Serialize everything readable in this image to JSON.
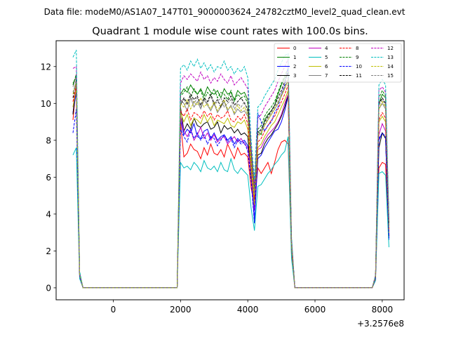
{
  "suptitle": "Data file: modeM0/AS1A07_147T01_9000003624_24782cztM0_level2_quad_clean.evt",
  "chart_data": {
    "type": "line",
    "title": "Quadrant 1 module wise count rates with 100.0s bins.",
    "xlabel": "",
    "ylabel": "",
    "x_offset_label": "+3.2576e8",
    "xlim": [
      -1700,
      8650
    ],
    "ylim": [
      -0.65,
      13.4
    ],
    "xticks": [
      0,
      2000,
      4000,
      6000,
      8000
    ],
    "xtick_labels": [
      "0",
      "2000",
      "4000",
      "6000",
      "8000"
    ],
    "yticks": [
      0,
      2,
      4,
      6,
      8,
      10,
      12
    ],
    "ytick_labels": [
      "0",
      "2",
      "4",
      "6",
      "8",
      "10",
      "12"
    ],
    "grid": false,
    "legend_position": "top-right",
    "segments": [
      {
        "x": [
          -1200,
          -1100,
          -1000,
          -900
        ]
      },
      {
        "x": [
          1900,
          2000,
          2100,
          2200,
          2300,
          2400,
          2500,
          2600,
          2700,
          2800,
          2900,
          3000,
          3100,
          3200,
          3300,
          3400,
          3500,
          3600,
          3700,
          3800,
          3900,
          4000,
          4100,
          4200,
          4300,
          4400,
          4500,
          4600,
          4700,
          4800,
          4900,
          5000,
          5100,
          5200,
          5300,
          5400
        ]
      },
      {
        "x": [
          7700,
          7800,
          7900,
          8000,
          8100,
          8200
        ]
      }
    ],
    "series": [
      {
        "name": "0",
        "color": "#ff0000",
        "dashed": false,
        "values": [
          [
            9.1,
            11.0,
            0.6,
            0.0
          ],
          [
            0.0,
            9.0,
            7.1,
            7.3,
            7.8,
            7.5,
            7.4,
            7.0,
            7.6,
            7.2,
            7.8,
            7.3,
            7.2,
            7.5,
            7.1,
            7.8,
            7.4,
            7.0,
            7.6,
            7.2,
            7.3,
            7.1,
            5.4,
            4.5,
            6.5,
            6.2,
            6.5,
            6.8,
            6.2,
            6.8,
            7.5,
            7.9,
            8.0,
            7.8,
            1.8,
            0.0
          ],
          [
            0.0,
            0.4,
            6.5,
            6.8,
            6.7,
            2.8
          ]
        ]
      },
      {
        "name": "1",
        "color": "#008000",
        "dashed": false,
        "values": [
          [
            11.1,
            11.4,
            0.8,
            0.0
          ],
          [
            0.0,
            10.5,
            10.8,
            10.6,
            11.0,
            10.7,
            10.5,
            10.8,
            10.4,
            10.9,
            10.6,
            10.5,
            10.7,
            10.3,
            10.8,
            10.5,
            10.6,
            10.2,
            10.7,
            10.5,
            10.6,
            10.2,
            7.5,
            5.5,
            8.5,
            8.3,
            9.1,
            9.4,
            9.6,
            9.9,
            10.5,
            11.0,
            11.4,
            11.6,
            2.5,
            0.0
          ],
          [
            0.0,
            0.6,
            10.0,
            10.5,
            10.3,
            3.5
          ]
        ]
      },
      {
        "name": "2",
        "color": "#0000ff",
        "dashed": false,
        "values": [
          [
            9.5,
            10.6,
            0.7,
            0.0
          ],
          [
            0.0,
            9.1,
            8.3,
            8.6,
            8.4,
            8.9,
            8.2,
            8.1,
            8.5,
            8.6,
            8.1,
            8.4,
            8.0,
            8.2,
            8.3,
            8.0,
            8.2,
            7.8,
            8.1,
            7.9,
            8.0,
            7.7,
            6.2,
            3.6,
            7.0,
            7.2,
            7.6,
            7.9,
            8.2,
            8.5,
            8.6,
            9.0,
            9.6,
            10.4,
            2.3,
            0.0
          ],
          [
            0.0,
            0.6,
            8.0,
            8.4,
            8.1,
            2.6
          ]
        ]
      },
      {
        "name": "3",
        "color": "#000000",
        "dashed": false,
        "values": [
          [
            9.4,
            11.2,
            0.7,
            0.0
          ],
          [
            0.0,
            9.8,
            8.5,
            8.9,
            8.6,
            9.2,
            8.8,
            8.7,
            8.9,
            9.0,
            8.6,
            8.7,
            9.0,
            8.4,
            8.8,
            8.6,
            8.7,
            8.4,
            8.6,
            8.3,
            8.4,
            8.2,
            6.0,
            4.7,
            7.2,
            7.3,
            7.8,
            8.1,
            8.3,
            8.6,
            8.9,
            9.3,
            9.8,
            10.5,
            2.4,
            0.0
          ],
          [
            0.0,
            0.6,
            7.6,
            8.4,
            8.1,
            2.8
          ]
        ]
      },
      {
        "name": "4",
        "color": "#bf00bf",
        "dashed": false,
        "values": [
          [
            9.8,
            11.0,
            0.7,
            0.0
          ],
          [
            0.0,
            9.3,
            8.5,
            8.2,
            8.6,
            8.0,
            8.3,
            8.7,
            8.1,
            8.4,
            8.0,
            8.3,
            7.9,
            8.1,
            8.2,
            7.8,
            8.0,
            8.2,
            7.9,
            8.1,
            7.8,
            7.6,
            6.3,
            4.2,
            7.5,
            7.6,
            8.0,
            8.3,
            8.5,
            8.7,
            9.0,
            9.4,
            10.0,
            10.5,
            2.3,
            0.0
          ],
          [
            0.0,
            0.6,
            8.3,
            8.9,
            8.5,
            2.9
          ]
        ]
      },
      {
        "name": "5",
        "color": "#00bfbf",
        "dashed": false,
        "values": [
          [
            7.2,
            7.6,
            0.5,
            0.0
          ],
          [
            0.0,
            6.8,
            6.5,
            6.6,
            6.4,
            6.8,
            6.6,
            6.3,
            6.9,
            6.5,
            6.4,
            6.6,
            6.3,
            6.8,
            6.4,
            6.3,
            7.0,
            6.4,
            6.2,
            6.5,
            6.3,
            6.1,
            4.3,
            3.1,
            5.5,
            5.6,
            5.9,
            6.2,
            6.4,
            6.7,
            6.9,
            7.2,
            7.4,
            8.2,
            1.6,
            0.0
          ],
          [
            0.0,
            0.4,
            6.2,
            6.3,
            6.1,
            2.2
          ]
        ]
      },
      {
        "name": "6",
        "color": "#bfbf00",
        "dashed": false,
        "values": [
          [
            9.8,
            10.8,
            0.7,
            0.0
          ],
          [
            0.0,
            9.5,
            9.0,
            9.4,
            8.8,
            9.2,
            9.1,
            8.9,
            9.4,
            9.0,
            9.3,
            8.8,
            9.1,
            9.0,
            8.9,
            9.2,
            8.8,
            8.7,
            9.0,
            8.9,
            9.1,
            8.6,
            6.5,
            4.5,
            7.6,
            7.8,
            8.2,
            8.5,
            8.8,
            9.0,
            9.4,
            9.8,
            10.2,
            10.7,
            2.3,
            0.0
          ],
          [
            0.0,
            0.6,
            9.0,
            9.3,
            9.0,
            3.0
          ]
        ]
      },
      {
        "name": "7",
        "color": "#808080",
        "dashed": false,
        "values": [
          [
            10.9,
            11.5,
            0.8,
            0.0
          ],
          [
            0.0,
            10.2,
            10.0,
            9.6,
            10.3,
            9.8,
            10.1,
            9.7,
            10.2,
            9.9,
            9.6,
            10.0,
            9.5,
            9.8,
            10.1,
            9.6,
            9.9,
            9.4,
            9.7,
            9.5,
            9.6,
            9.3,
            7.0,
            5.0,
            8.3,
            8.4,
            8.8,
            9.1,
            9.4,
            9.7,
            10.0,
            10.4,
            10.8,
            11.3,
            2.5,
            0.0
          ],
          [
            0.0,
            0.6,
            9.7,
            10.0,
            9.7,
            3.3
          ]
        ]
      },
      {
        "name": "8",
        "color": "#ff0000",
        "dashed": true,
        "values": [
          [
            10.1,
            10.9,
            0.7,
            0.0
          ],
          [
            0.0,
            9.6,
            9.3,
            9.7,
            9.1,
            9.5,
            9.4,
            9.2,
            9.6,
            9.3,
            9.5,
            9.1,
            9.4,
            9.2,
            9.3,
            9.6,
            9.1,
            9.0,
            9.3,
            9.1,
            9.4,
            8.9,
            6.8,
            4.8,
            7.9,
            8.1,
            8.5,
            8.8,
            9.1,
            9.3,
            9.7,
            10.1,
            10.5,
            11.0,
            2.3,
            0.0
          ],
          [
            0.0,
            0.6,
            9.1,
            9.5,
            9.2,
            3.1
          ]
        ]
      },
      {
        "name": "9",
        "color": "#008000",
        "dashed": true,
        "values": [
          [
            11.0,
            11.6,
            0.8,
            0.0
          ],
          [
            0.0,
            10.4,
            10.6,
            10.9,
            10.3,
            10.8,
            10.5,
            10.7,
            10.2,
            10.6,
            10.4,
            10.8,
            10.3,
            10.6,
            10.5,
            10.2,
            10.7,
            10.1,
            10.5,
            10.3,
            10.4,
            10.0,
            7.3,
            5.4,
            8.6,
            8.8,
            9.3,
            9.6,
            9.8,
            10.1,
            10.6,
            11.1,
            11.5,
            11.9,
            2.6,
            0.0
          ],
          [
            0.0,
            0.6,
            10.3,
            10.7,
            10.4,
            3.5
          ]
        ]
      },
      {
        "name": "10",
        "color": "#0000ff",
        "dashed": true,
        "values": [
          [
            8.4,
            9.7,
            0.6,
            0.0
          ],
          [
            0.0,
            8.6,
            8.2,
            7.9,
            8.6,
            8.1,
            8.4,
            8.0,
            8.3,
            7.8,
            8.2,
            8.1,
            7.7,
            8.0,
            8.3,
            7.9,
            8.1,
            7.6,
            8.0,
            7.8,
            7.9,
            7.4,
            5.8,
            3.5,
            9.5,
            9.0,
            8.5,
            8.8,
            9.0,
            9.5,
            9.8,
            10.5,
            11.0,
            12.0,
            2.4,
            0.0
          ],
          [
            0.0,
            0.5,
            8.1,
            8.4,
            8.2,
            2.7
          ]
        ]
      },
      {
        "name": "11",
        "color": "#000000",
        "dashed": true,
        "values": [
          [
            10.3,
            11.3,
            0.7,
            0.0
          ],
          [
            0.0,
            9.9,
            10.3,
            10.0,
            10.5,
            10.2,
            10.4,
            9.9,
            10.3,
            10.1,
            10.5,
            10.0,
            10.2,
            9.8,
            10.3,
            10.1,
            10.4,
            9.9,
            10.1,
            10.3,
            10.0,
            9.7,
            7.1,
            5.1,
            8.4,
            8.6,
            9.0,
            9.3,
            9.6,
            9.9,
            10.3,
            10.7,
            11.2,
            11.7,
            2.5,
            0.0
          ],
          [
            0.0,
            0.6,
            10.0,
            10.3,
            10.0,
            3.4
          ]
        ]
      },
      {
        "name": "12",
        "color": "#bf00bf",
        "dashed": true,
        "values": [
          [
            11.9,
            12.0,
            0.8,
            0.0
          ],
          [
            0.0,
            11.1,
            11.5,
            11.3,
            11.6,
            11.4,
            11.2,
            11.7,
            11.3,
            11.5,
            11.1,
            11.4,
            11.2,
            11.6,
            11.3,
            11.1,
            11.5,
            11.0,
            11.2,
            11.4,
            11.1,
            10.8,
            7.6,
            5.6,
            9.2,
            9.4,
            9.8,
            10.1,
            10.4,
            10.7,
            11.2,
            11.6,
            12.0,
            12.4,
            2.7,
            0.0
          ],
          [
            0.0,
            0.7,
            10.7,
            10.9,
            10.6,
            3.7
          ]
        ]
      },
      {
        "name": "13",
        "color": "#00bfbf",
        "dashed": true,
        "values": [
          [
            12.5,
            12.9,
            0.9,
            0.0
          ],
          [
            0.0,
            11.9,
            12.1,
            11.8,
            12.3,
            12.0,
            12.4,
            11.9,
            12.2,
            11.8,
            12.1,
            11.7,
            12.0,
            11.9,
            12.3,
            11.8,
            12.0,
            11.6,
            11.9,
            11.7,
            12.0,
            11.4,
            8.0,
            5.9,
            9.8,
            10.0,
            10.4,
            10.7,
            11.0,
            11.3,
            11.8,
            12.2,
            12.6,
            12.7,
            2.8,
            0.0
          ],
          [
            0.0,
            0.7,
            11.0,
            11.3,
            11.0,
            3.8
          ]
        ]
      },
      {
        "name": "14",
        "color": "#bfbf00",
        "dashed": true,
        "values": [
          [
            10.5,
            11.1,
            0.7,
            0.0
          ],
          [
            0.0,
            10.0,
            9.8,
            10.2,
            9.7,
            10.1,
            9.9,
            10.3,
            9.8,
            10.0,
            9.7,
            10.1,
            9.6,
            9.9,
            10.2,
            9.7,
            9.8,
            9.5,
            9.9,
            9.6,
            9.8,
            9.4,
            7.0,
            5.0,
            8.2,
            8.4,
            8.8,
            9.1,
            9.4,
            9.7,
            10.0,
            10.4,
            10.8,
            11.3,
            2.4,
            0.0
          ],
          [
            0.0,
            0.6,
            9.7,
            10.1,
            9.8,
            3.3
          ]
        ]
      },
      {
        "name": "15",
        "color": "#808080",
        "dashed": true,
        "values": [
          [
            10.6,
            11.2,
            0.7,
            0.0
          ],
          [
            0.0,
            10.1,
            10.2,
            9.9,
            10.4,
            10.0,
            10.3,
            9.8,
            10.2,
            10.0,
            10.4,
            9.9,
            10.1,
            10.3,
            9.8,
            10.0,
            10.2,
            9.7,
            10.0,
            9.8,
            10.1,
            9.5,
            7.1,
            5.1,
            8.4,
            8.5,
            8.9,
            9.2,
            9.5,
            9.8,
            10.1,
            10.5,
            10.9,
            11.4,
            2.5,
            0.0
          ],
          [
            0.0,
            0.6,
            9.9,
            10.2,
            9.9,
            3.4
          ]
        ]
      }
    ]
  }
}
